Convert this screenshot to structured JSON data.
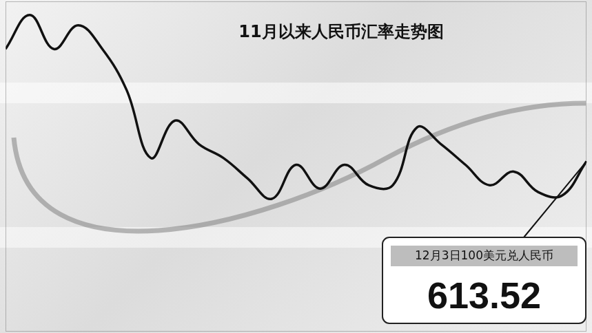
{
  "chart_data": {
    "type": "line",
    "title": "11月以来人民币汇率走势图",
    "categories": [
      null,
      null,
      null,
      null,
      null,
      null,
      null,
      null,
      null,
      null,
      null,
      null,
      null,
      null,
      null,
      null,
      null,
      null,
      null,
      null,
      null,
      null,
      null,
      null,
      null
    ],
    "values": [
      613.85,
      613.95,
      613.85,
      613.92,
      613.85,
      613.73,
      613.53,
      613.64,
      613.57,
      613.53,
      613.47,
      613.41,
      613.51,
      613.44,
      613.51,
      613.45,
      613.45,
      613.62,
      613.57,
      613.51,
      613.45,
      613.49,
      613.43,
      613.42,
      613.52
    ],
    "color": "#111111",
    "ylim": [
      613.02,
      613.99
    ],
    "grid": false,
    "tick_labels": false,
    "annotation": {
      "text": "12月3日100美元兑人民币",
      "value": 613.52
    }
  }
}
